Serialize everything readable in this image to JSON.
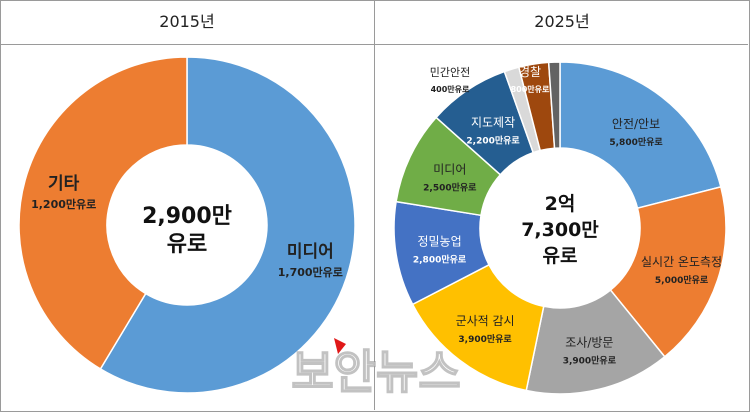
{
  "panels": [
    {
      "title": "2015년"
    },
    {
      "title": "2025년"
    }
  ],
  "chart_data": [
    {
      "type": "pie",
      "title": "2015년",
      "center_label": [
        "2,900만",
        "유로"
      ],
      "slices": [
        {
          "name": "미디어",
          "value": 1700,
          "value_label": "1,700만유로",
          "color": "#5B9BD5"
        },
        {
          "name": "기타",
          "value": 1200,
          "value_label": "1,200만유로",
          "color": "#ED7D31"
        }
      ]
    },
    {
      "type": "pie",
      "title": "2025년",
      "center_label": [
        "2억",
        "7,300만",
        "유로"
      ],
      "slices": [
        {
          "name": "안전/안보",
          "value": 5800,
          "value_label": "5,800만유로",
          "color": "#5B9BD5"
        },
        {
          "name": "실시간 온도측정",
          "value": 5000,
          "value_label": "5,000만유로",
          "color": "#ED7D31"
        },
        {
          "name": "조사/방문",
          "value": 3900,
          "value_label": "3,900만유로",
          "color": "#A5A5A5"
        },
        {
          "name": "군사적 감시",
          "value": 3900,
          "value_label": "3,900만유로",
          "color": "#FFC000"
        },
        {
          "name": "정밀농업",
          "value": 2800,
          "value_label": "2,800만유로",
          "color": "#4472C4"
        },
        {
          "name": "미디어",
          "value": 2500,
          "value_label": "2,500만유로",
          "color": "#70AD47"
        },
        {
          "name": "지도제작",
          "value": 2200,
          "value_label": "2,200만유로",
          "color": "#255E91"
        },
        {
          "name": "민간안전",
          "value": 400,
          "value_label": "400만유로",
          "color": "#D9D9D9"
        },
        {
          "name": "경찰",
          "value": 800,
          "value_label": "800만유로",
          "color": "#9E480E"
        },
        {
          "name": "",
          "value": 300,
          "value_label": "",
          "color": "#636363"
        }
      ]
    }
  ],
  "watermark": {
    "text": "보안뉴스",
    "accent_color": "#e01818"
  }
}
